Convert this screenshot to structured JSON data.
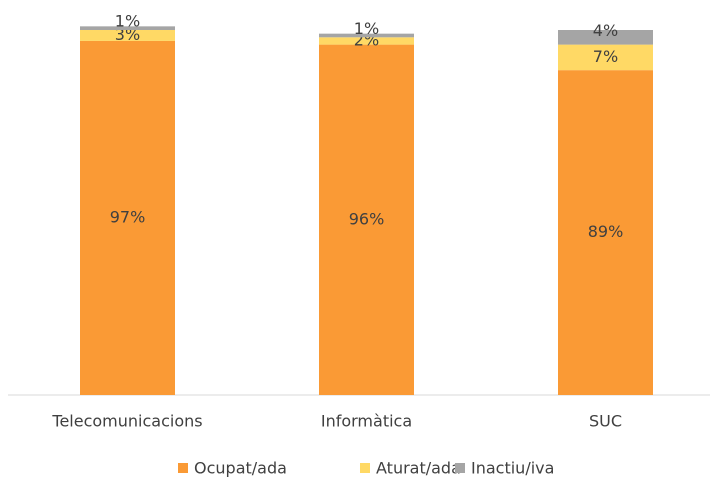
{
  "chart_data": {
    "type": "stacked_bar",
    "categories": [
      "Telecomunicacions",
      "Informàtica",
      "SUC"
    ],
    "ylim": [
      0,
      100
    ],
    "series": [
      {
        "name": "Ocupat/ada",
        "color": "#fa9a35",
        "values": [
          97,
          96,
          89
        ],
        "value_labels": [
          "97%",
          "96%",
          "89%"
        ]
      },
      {
        "name": "Aturat/ada",
        "color": "#ffd965",
        "values": [
          3,
          2,
          7
        ],
        "value_labels": [
          "3%",
          "2%",
          "7%"
        ]
      },
      {
        "name": "Inactiu/iva",
        "color": "#a5a5a5",
        "values": [
          1,
          1,
          4
        ],
        "value_labels": [
          "1%",
          "1%",
          "4%"
        ]
      }
    ]
  }
}
